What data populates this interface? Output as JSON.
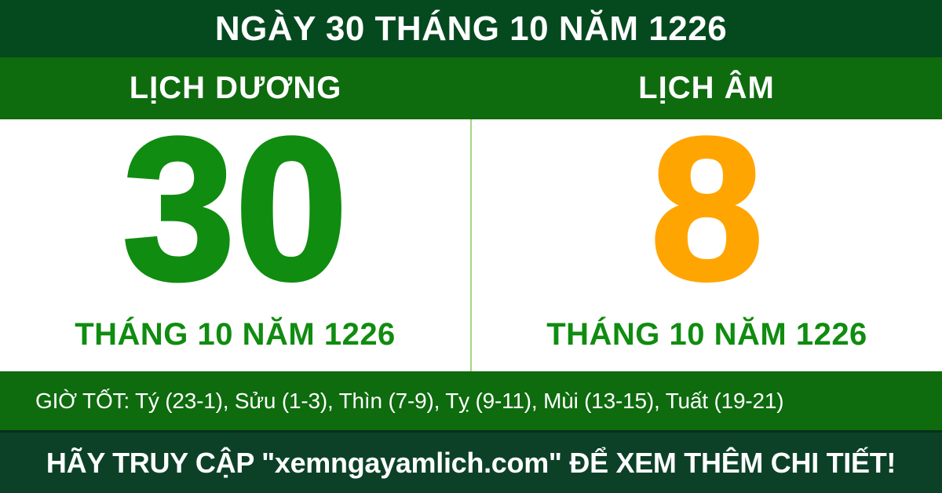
{
  "title": "NGÀY 30 THÁNG 10 NĂM 1226",
  "solar": {
    "header": "LỊCH DƯƠNG",
    "day": "30",
    "month_year": "THÁNG 10 NĂM 1226"
  },
  "lunar": {
    "header": "LỊCH ÂM",
    "day": "8",
    "month_year": "THÁNG 10 NĂM 1226"
  },
  "good_hours": "GIỜ TỐT: Tý (23-1), Sửu (1-3), Thìn (7-9), Tỵ (9-11), Mùi (13-15), Tuất (19-21)",
  "footer": "HÃY TRUY CẬP \"xemngayamlich.com\" ĐỂ XEM THÊM CHI TIẾT!",
  "colors": {
    "top_banner_bg": "#05491F",
    "section_green": "#0E6B0E",
    "solar_day_green": "#108C10",
    "lunar_day_orange": "#FFA502",
    "footer_bg": "#0C4128",
    "divider_light_green": "#A5D383",
    "text_white": "#FFFFFF"
  }
}
